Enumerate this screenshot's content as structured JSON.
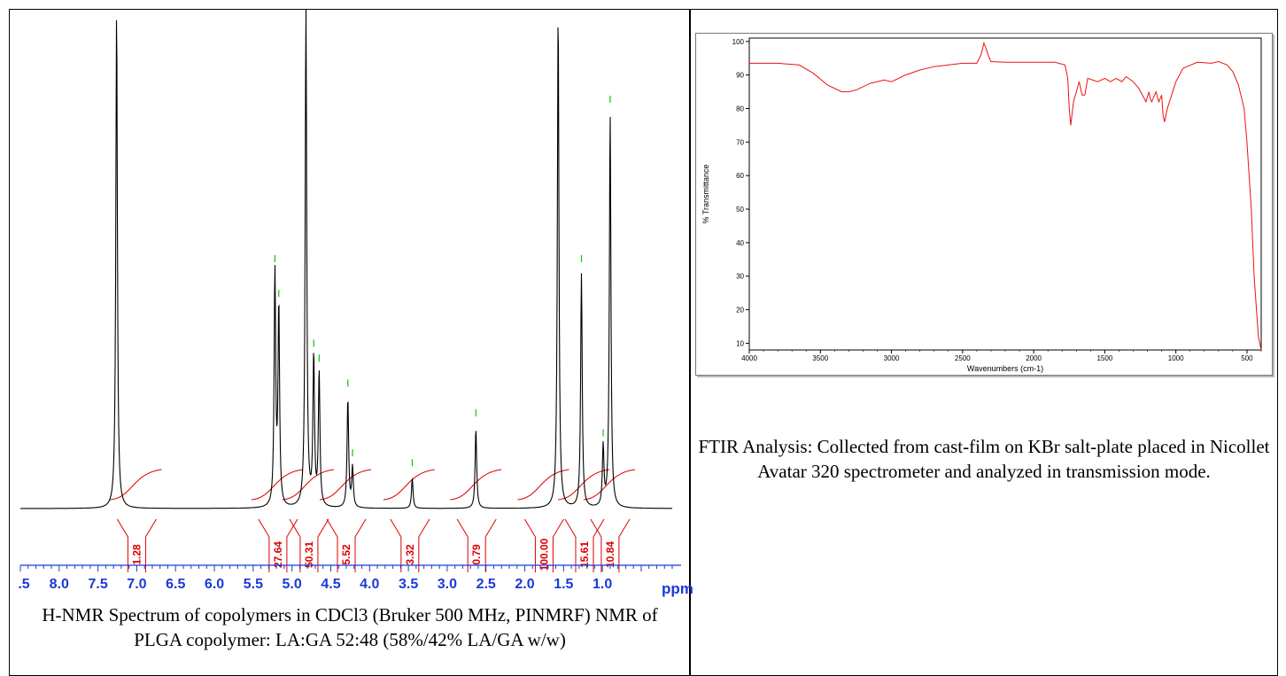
{
  "nmr": {
    "caption": "H-NMR Spectrum of copolymers in CDCl3 (Bruker 500 MHz, PINMRF) NMR of PLGA copolymer: LA:GA 52:48 (58%/42% LA/GA w/w)",
    "axis_unit": "ppm",
    "colors": {
      "spectrum": "#000000",
      "integral": "#dd0000",
      "peak_marker": "#00cc00",
      "axis": "#1a3ad6"
    }
  },
  "ftir": {
    "caption": "FTIR Analysis: Collected from cast-film on KBr salt-plate placed in Nicollet Avatar 320 spectrometer and analyzed in transmission mode.",
    "colors": {
      "spectrum": "#ee1111",
      "axis": "#000000"
    }
  },
  "chart_data": [
    {
      "type": "line",
      "title": "",
      "xlabel": "ppm",
      "ylabel": "",
      "x_reversed": true,
      "xlim": [
        8.5,
        0.1
      ],
      "x_ticks": [
        ".5",
        "8.0",
        "7.5",
        "7.0",
        "6.5",
        "6.0",
        "5.5",
        "5.0",
        "4.5",
        "4.0",
        "3.5",
        "3.0",
        "2.5",
        "2.0",
        "1.5",
        "1.0"
      ],
      "x_tick_values": [
        8.5,
        8.0,
        7.5,
        7.0,
        6.5,
        6.0,
        5.5,
        5.0,
        4.5,
        4.0,
        3.5,
        3.0,
        2.5,
        2.0,
        1.5,
        1.0
      ],
      "peaks": [
        {
          "ppm": 7.26,
          "height": 1.0
        },
        {
          "ppm": 5.22,
          "height": 0.47
        },
        {
          "ppm": 5.17,
          "height": 0.4
        },
        {
          "ppm": 4.82,
          "height": 1.0
        },
        {
          "ppm": 4.72,
          "height": 0.3
        },
        {
          "ppm": 4.65,
          "height": 0.27
        },
        {
          "ppm": 4.28,
          "height": 0.22
        },
        {
          "ppm": 4.22,
          "height": 0.08
        },
        {
          "ppm": 3.45,
          "height": 0.06
        },
        {
          "ppm": 2.63,
          "height": 0.16
        },
        {
          "ppm": 1.57,
          "height": 1.0
        },
        {
          "ppm": 1.27,
          "height": 0.47
        },
        {
          "ppm": 0.99,
          "height": 0.12
        },
        {
          "ppm": 0.9,
          "height": 0.79
        }
      ],
      "integrals": [
        {
          "label": "1.28",
          "ppm": 7.0
        },
        {
          "label": "27.64",
          "ppm": 5.18
        },
        {
          "label": "50.31",
          "ppm": 4.78
        },
        {
          "label": "5.52",
          "ppm": 4.3
        },
        {
          "label": "3.32",
          "ppm": 3.48
        },
        {
          "label": "0.79",
          "ppm": 2.62
        },
        {
          "label": "100.00",
          "ppm": 1.75
        },
        {
          "label": "15.61",
          "ppm": 1.23
        },
        {
          "label": "10.84",
          "ppm": 0.9
        }
      ]
    },
    {
      "type": "line",
      "title": "",
      "xlabel": "Wavenumbers (cm-1)",
      "ylabel": "% Transmittance",
      "x_reversed": true,
      "xlim": [
        4000,
        400
      ],
      "ylim": [
        8,
        101
      ],
      "x_ticks": [
        "4000",
        "3500",
        "3000",
        "2500",
        "2000",
        "1500",
        "1000",
        "500"
      ],
      "x_tick_values": [
        4000,
        3500,
        3000,
        2500,
        2000,
        1500,
        1000,
        500
      ],
      "y_ticks": [
        "10",
        "20",
        "30",
        "40",
        "50",
        "60",
        "70",
        "80",
        "90",
        "100"
      ],
      "y_tick_values": [
        10,
        20,
        30,
        40,
        50,
        60,
        70,
        80,
        90,
        100
      ],
      "series": [
        {
          "x": [
            4000,
            3800,
            3650,
            3550,
            3450,
            3350,
            3300,
            3250,
            3150,
            3050,
            3000,
            2950,
            2900,
            2800,
            2700,
            2500,
            2400,
            2370,
            2350,
            2340,
            2320,
            2300,
            2200,
            2000,
            1850,
            1780,
            1760,
            1750,
            1740,
            1720,
            1680,
            1660,
            1640,
            1620,
            1550,
            1500,
            1460,
            1420,
            1380,
            1350,
            1300,
            1260,
            1210,
            1190,
            1180,
            1170,
            1140,
            1120,
            1100,
            1090,
            1080,
            1060,
            1000,
            950,
            850,
            750,
            700,
            640,
            600,
            560,
            520,
            500,
            470,
            450,
            420,
            400
          ],
          "y": [
            93.5,
            93.5,
            93,
            90.5,
            87,
            85,
            85,
            85.5,
            87.5,
            88.5,
            88,
            89,
            90,
            91.5,
            92.5,
            93.5,
            93.5,
            96,
            99.5,
            98.5,
            96,
            94,
            93.8,
            93.8,
            93.8,
            93,
            89,
            80,
            75,
            82,
            88,
            84,
            84,
            89,
            88,
            89,
            88,
            89,
            88,
            89.5,
            88,
            86,
            82,
            85,
            83,
            82,
            85,
            82,
            84,
            78,
            76,
            80,
            88,
            92,
            93.8,
            93.5,
            94,
            93,
            91,
            87,
            80,
            70,
            50,
            30,
            12,
            8
          ]
        }
      ]
    }
  ]
}
